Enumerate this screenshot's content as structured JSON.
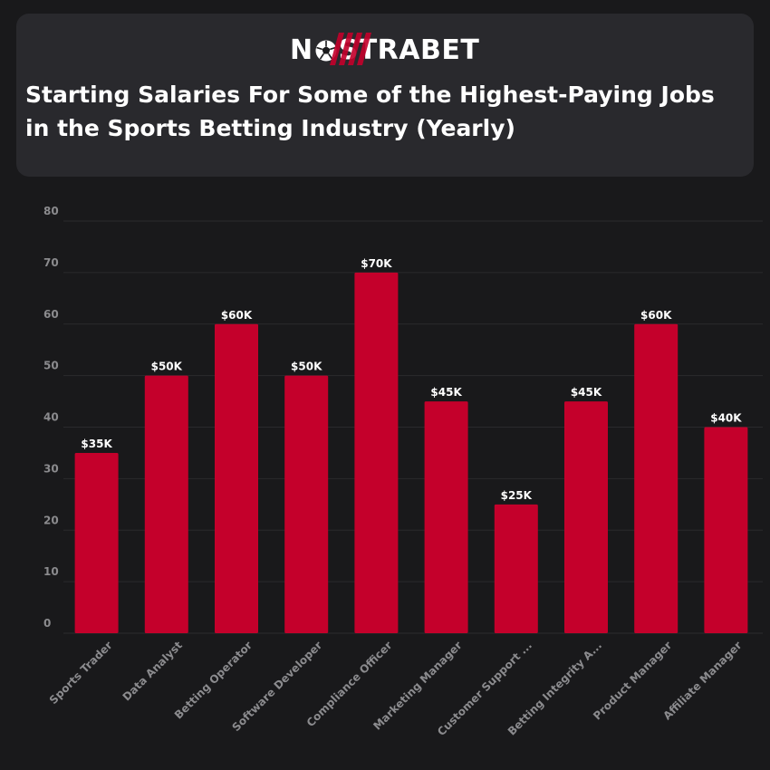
{
  "header": {
    "logo_text_left": "N",
    "logo_text_right": "STRABET",
    "logo_icon": "soccer-ball-icon",
    "title": "Starting Salaries For Some of the Highest-Paying Jobs in the Sports Betting Industry (Yearly)"
  },
  "colors": {
    "background": "#19191b",
    "card": "#29292d",
    "bar": "#c4002b",
    "grid": "#2a2a2d",
    "axis_text": "#8b8b8e"
  },
  "chart_data": {
    "type": "bar",
    "categories": [
      "Sports Trader",
      "Data Analyst",
      "Betting Operator",
      "Software Developer",
      "Compliance Officer",
      "Marketing Manager",
      "Customer Support ...",
      "Betting Integrity A...",
      "Product Manager",
      "Affiliate Manager"
    ],
    "values": [
      35,
      50,
      60,
      50,
      70,
      45,
      25,
      45,
      60,
      40
    ],
    "data_labels": [
      "$35K",
      "$50K",
      "$60K",
      "$50K",
      "$70K",
      "$45K",
      "$25K",
      "$45K",
      "$60K",
      "$40K"
    ],
    "yticks": [
      "0",
      "10",
      "20",
      "30",
      "40",
      "50",
      "60",
      "70",
      "80"
    ],
    "ylim": [
      0,
      80
    ],
    "grid": true,
    "xlabel": "",
    "ylabel": ""
  }
}
